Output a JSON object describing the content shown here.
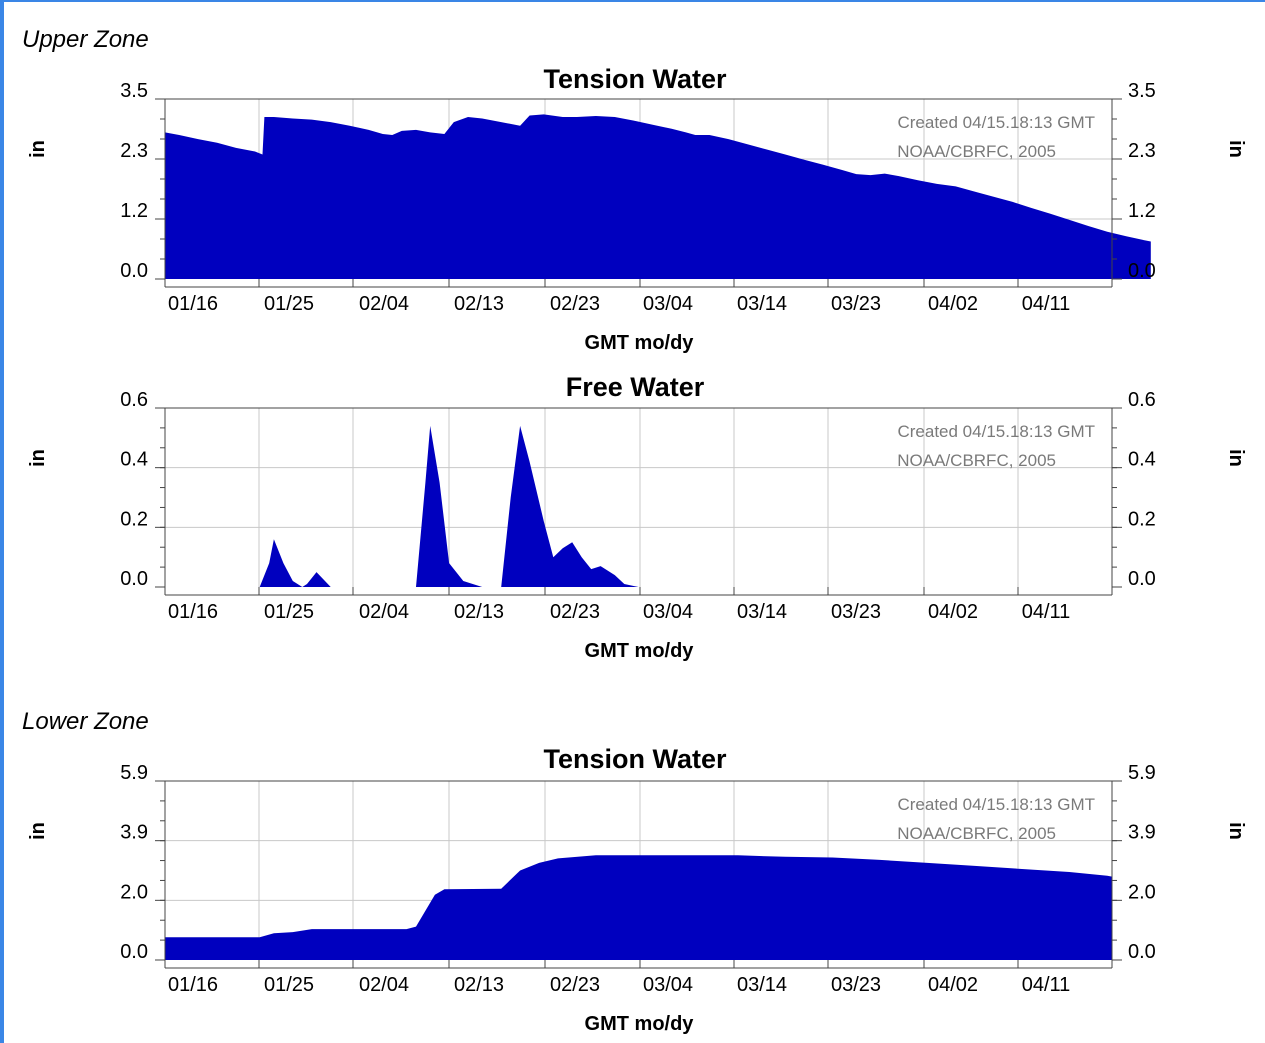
{
  "zones": {
    "upper_label": "Upper Zone",
    "lower_label": "Lower Zone"
  },
  "colors": {
    "fill": "#0000bf",
    "grid": "#c8c8c8",
    "axis": "#444444",
    "annotation": "#7a7a7a",
    "frame": "#3a86e6"
  },
  "chart_data": [
    {
      "type": "area",
      "title": "Tension Water",
      "zone": "Upper Zone",
      "xlabel": "GMT mo/dy",
      "ylabel": "in",
      "ylabel_right": "in",
      "x_ticks": [
        "01/16",
        "01/25",
        "02/04",
        "02/13",
        "02/23",
        "03/04",
        "03/14",
        "03/23",
        "04/02",
        "04/11"
      ],
      "yticks": [
        "0.0",
        "1.2",
        "2.3",
        "3.5"
      ],
      "ylim": [
        0,
        3.5
      ],
      "xlim_days": [
        -5.5,
        94.5
      ],
      "grid": true,
      "annotations": [
        "Created 04/15.18:13 GMT",
        "NOAA/CBRFC, 2005"
      ],
      "points": [
        [
          -5.5,
          2.85
        ],
        [
          -4,
          2.8
        ],
        [
          -2,
          2.72
        ],
        [
          0,
          2.65
        ],
        [
          2,
          2.55
        ],
        [
          4,
          2.48
        ],
        [
          4.8,
          2.42
        ],
        [
          5,
          3.15
        ],
        [
          6,
          3.15
        ],
        [
          8,
          3.12
        ],
        [
          10,
          3.1
        ],
        [
          12,
          3.05
        ],
        [
          14,
          2.98
        ],
        [
          16,
          2.9
        ],
        [
          17.5,
          2.82
        ],
        [
          18.5,
          2.8
        ],
        [
          19.5,
          2.88
        ],
        [
          21,
          2.9
        ],
        [
          22.5,
          2.85
        ],
        [
          24,
          2.82
        ],
        [
          25,
          3.05
        ],
        [
          26.5,
          3.15
        ],
        [
          28,
          3.12
        ],
        [
          30,
          3.05
        ],
        [
          32,
          2.98
        ],
        [
          33,
          3.18
        ],
        [
          34.5,
          3.2
        ],
        [
          36.5,
          3.15
        ],
        [
          38,
          3.15
        ],
        [
          40,
          3.17
        ],
        [
          42,
          3.15
        ],
        [
          44,
          3.08
        ],
        [
          46,
          3.0
        ],
        [
          48,
          2.92
        ],
        [
          49.5,
          2.85
        ],
        [
          50.5,
          2.8
        ],
        [
          52,
          2.8
        ],
        [
          54,
          2.72
        ],
        [
          56,
          2.62
        ],
        [
          58,
          2.52
        ],
        [
          60,
          2.42
        ],
        [
          62,
          2.32
        ],
        [
          64,
          2.22
        ],
        [
          66,
          2.12
        ],
        [
          67.5,
          2.04
        ],
        [
          69,
          2.02
        ],
        [
          70.5,
          2.05
        ],
        [
          72,
          2.0
        ],
        [
          74,
          1.92
        ],
        [
          76,
          1.85
        ],
        [
          78,
          1.8
        ],
        [
          80,
          1.7
        ],
        [
          82,
          1.6
        ],
        [
          84,
          1.5
        ],
        [
          86,
          1.38
        ],
        [
          88,
          1.27
        ],
        [
          90,
          1.15
        ],
        [
          92,
          1.03
        ],
        [
          94,
          0.92
        ],
        [
          96,
          0.83
        ],
        [
          98,
          0.75
        ],
        [
          98.6,
          0.73
        ]
      ]
    },
    {
      "type": "area",
      "title": "Free Water",
      "zone": "Upper Zone",
      "xlabel": "GMT mo/dy",
      "ylabel": "in",
      "ylabel_right": "in",
      "x_ticks": [
        "01/16",
        "01/25",
        "02/04",
        "02/13",
        "02/23",
        "03/04",
        "03/14",
        "03/23",
        "04/02",
        "04/11"
      ],
      "yticks": [
        "0.0",
        "0.2",
        "0.4",
        "0.6"
      ],
      "ylim": [
        0,
        0.6
      ],
      "xlim_days": [
        -5.5,
        94.5
      ],
      "grid": true,
      "annotations": [
        "Created 04/15.18:13 GMT",
        "NOAA/CBRFC, 2005"
      ],
      "points": [
        [
          4.5,
          0
        ],
        [
          5.5,
          0.08
        ],
        [
          6,
          0.16
        ],
        [
          7,
          0.08
        ],
        [
          8,
          0.02
        ],
        [
          9,
          0
        ],
        [
          9.5,
          0.01
        ],
        [
          10.5,
          0.05
        ],
        [
          12,
          0
        ],
        [
          21,
          0
        ],
        [
          22,
          0.35
        ],
        [
          22.5,
          0.54
        ],
        [
          23.5,
          0.35
        ],
        [
          24.5,
          0.08
        ],
        [
          26,
          0.02
        ],
        [
          28,
          0
        ],
        [
          30,
          0
        ],
        [
          31,
          0.3
        ],
        [
          32,
          0.54
        ],
        [
          33,
          0.42
        ],
        [
          34.5,
          0.22
        ],
        [
          35.5,
          0.1
        ],
        [
          36.5,
          0.13
        ],
        [
          37.5,
          0.15
        ],
        [
          38.5,
          0.1
        ],
        [
          39.5,
          0.06
        ],
        [
          40.5,
          0.07
        ],
        [
          42,
          0.04
        ],
        [
          43,
          0.01
        ],
        [
          44.5,
          0
        ]
      ]
    },
    {
      "type": "area",
      "title": "Tension Water",
      "zone": "Lower Zone",
      "xlabel": "GMT mo/dy",
      "ylabel": "in",
      "ylabel_right": "in",
      "x_ticks": [
        "01/16",
        "01/25",
        "02/04",
        "02/13",
        "02/23",
        "03/04",
        "03/14",
        "03/23",
        "04/02",
        "04/11"
      ],
      "yticks": [
        "0.0",
        "2.0",
        "3.9",
        "5.9"
      ],
      "ylim": [
        0,
        5.9
      ],
      "xlim_days": [
        -5.5,
        94.5
      ],
      "grid": true,
      "annotations": [
        "Created 04/15.18:13 GMT",
        "NOAA/CBRFC, 2005"
      ],
      "points": [
        [
          -5.5,
          0.75
        ],
        [
          4.5,
          0.75
        ],
        [
          6,
          0.88
        ],
        [
          8,
          0.92
        ],
        [
          10,
          1.02
        ],
        [
          12,
          1.02
        ],
        [
          20,
          1.02
        ],
        [
          21,
          1.1
        ],
        [
          23,
          2.15
        ],
        [
          24,
          2.33
        ],
        [
          30,
          2.35
        ],
        [
          32,
          2.95
        ],
        [
          34,
          3.2
        ],
        [
          36,
          3.35
        ],
        [
          40,
          3.45
        ],
        [
          45,
          3.45
        ],
        [
          55,
          3.45
        ],
        [
          60,
          3.4
        ],
        [
          65,
          3.38
        ],
        [
          70,
          3.3
        ],
        [
          75,
          3.2
        ],
        [
          80,
          3.1
        ],
        [
          85,
          3.0
        ],
        [
          90,
          2.9
        ],
        [
          94,
          2.78
        ],
        [
          94.5,
          2.75
        ]
      ]
    }
  ]
}
